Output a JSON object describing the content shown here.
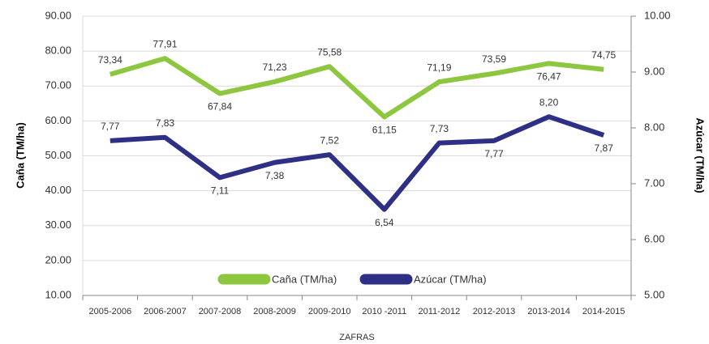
{
  "chart_data": {
    "type": "line",
    "categories": [
      "2005-2006",
      "2006-2007",
      "2007-2008",
      "2008-2009",
      "2009-2010",
      "2010 -2011",
      "2011-2012",
      "2012-2013",
      "2013-2014",
      "2014-2015"
    ],
    "series": [
      {
        "name": "Caña (TM/ha)",
        "color": "#8dc63f",
        "values": [
          73.34,
          77.91,
          67.84,
          71.23,
          75.58,
          61.15,
          71.19,
          73.59,
          76.47,
          74.75
        ],
        "value_labels": [
          "73,34",
          "77,91",
          "67,84",
          "71,23",
          "75,58",
          "61,15",
          "71,19",
          "73,59",
          "76,47",
          "74,75"
        ]
      },
      {
        "name": "Azúcar (TM/ha)",
        "color": "#2e3085",
        "axis": "y2",
        "values": [
          7.77,
          7.83,
          7.11,
          7.38,
          7.52,
          6.54,
          7.73,
          7.77,
          8.2,
          7.87
        ],
        "value_labels": [
          "7,77",
          "7,83",
          "7,11",
          "7,38",
          "7,52",
          "6,54",
          "7,73",
          "7,77",
          "8,20",
          "7,87"
        ]
      }
    ],
    "ylabel": "Caña (TM/ha)",
    "y2label": "Azúcar (TM/ha)",
    "xlabel": "ZAFRAS",
    "ylim": [
      10,
      90
    ],
    "yticks": [
      {
        "value": 10,
        "label": "10.00"
      },
      {
        "value": 20,
        "label": "20.00"
      },
      {
        "value": 30,
        "label": "30.00"
      },
      {
        "value": 40,
        "label": "40.00"
      },
      {
        "value": 50,
        "label": "50.00"
      },
      {
        "value": 60,
        "label": "60.00"
      },
      {
        "value": 70,
        "label": "70.00"
      },
      {
        "value": 80,
        "label": "80.00"
      },
      {
        "value": 90,
        "label": "90.00"
      }
    ],
    "y2lim": [
      5,
      10
    ],
    "y2ticks": [
      {
        "value": 5,
        "label": "5.00"
      },
      {
        "value": 6,
        "label": "6.00"
      },
      {
        "value": 7,
        "label": "7.00"
      },
      {
        "value": 8,
        "label": "8.00"
      },
      {
        "value": 9,
        "label": "9.00"
      },
      {
        "value": 10,
        "label": "10.00"
      }
    ],
    "grid": true
  }
}
